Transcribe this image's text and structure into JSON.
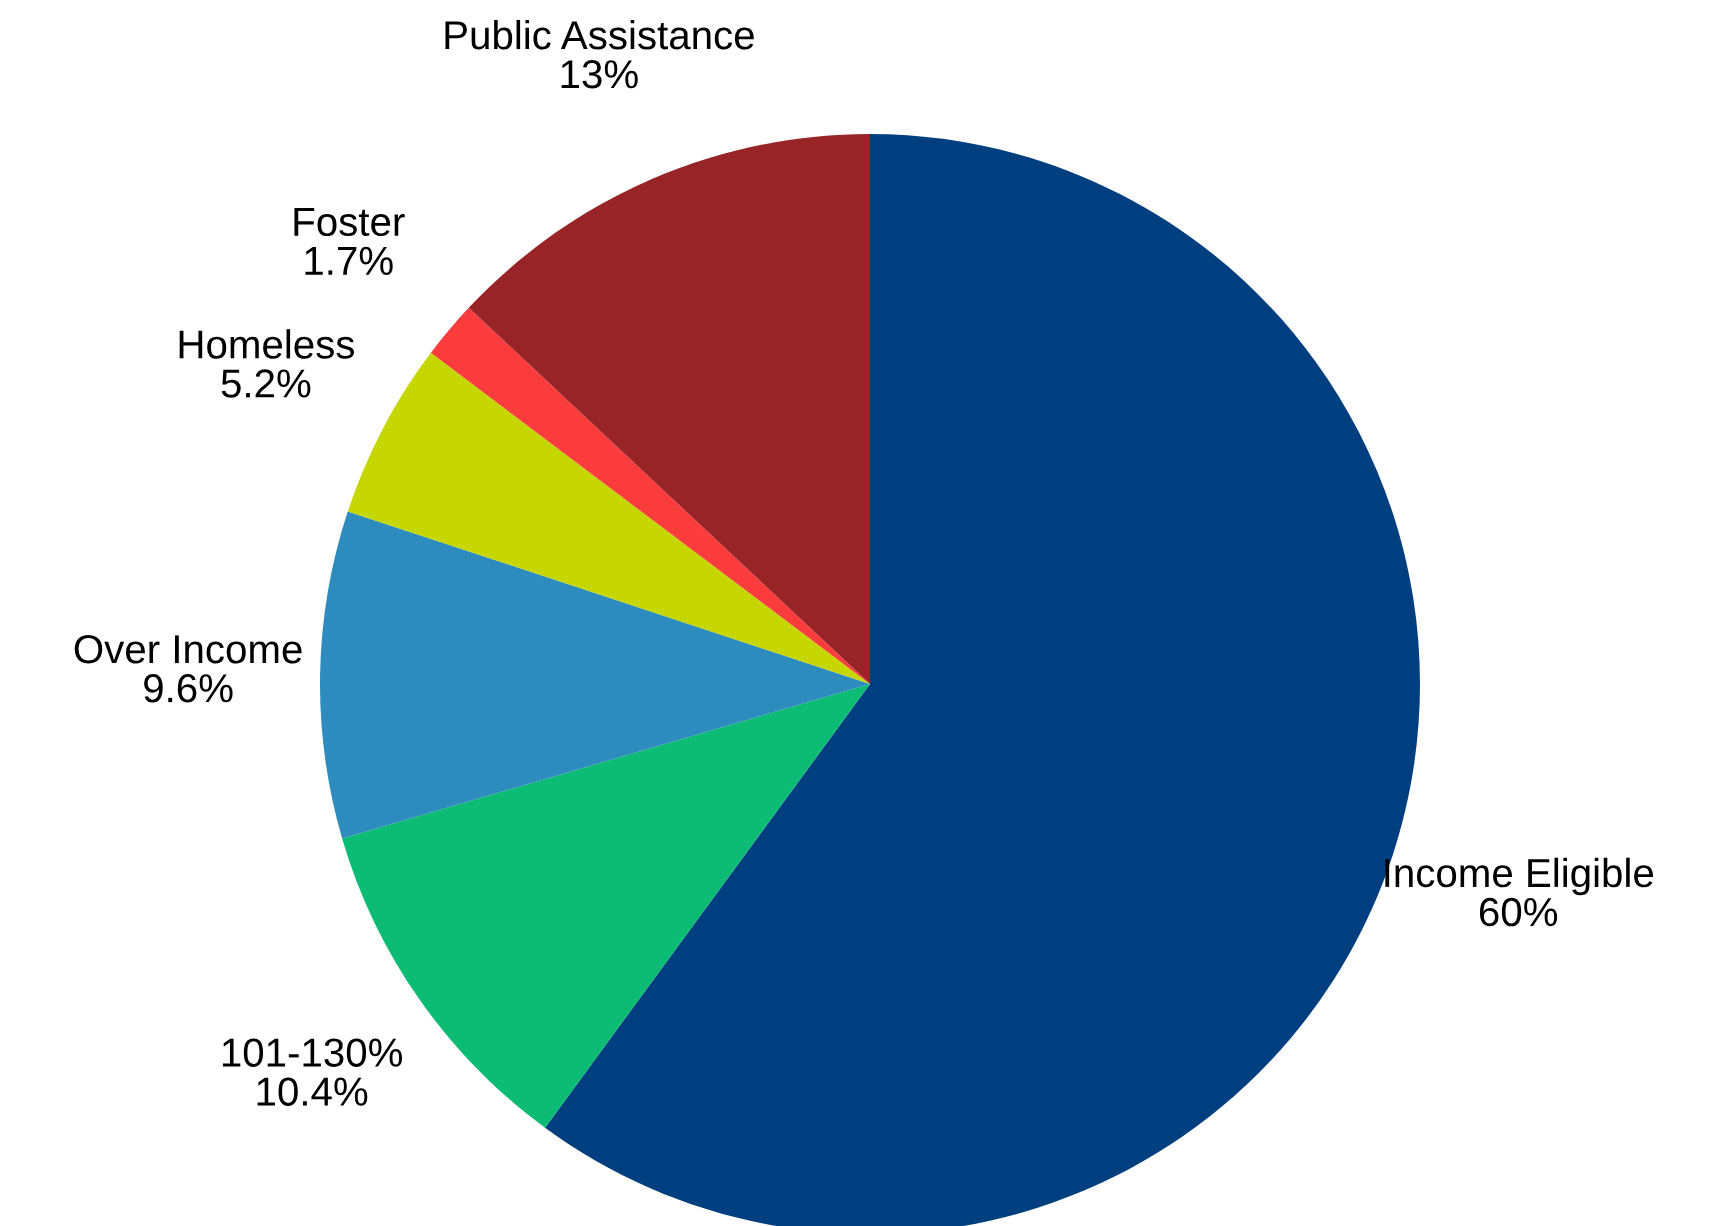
{
  "chart_data": {
    "type": "pie",
    "categories": [
      "Income Eligible",
      "101-130%",
      "Over Income",
      "Homeless",
      "Foster",
      "Public Assistance"
    ],
    "values": [
      60,
      10.4,
      9.6,
      5.2,
      1.7,
      13
    ],
    "value_labels": [
      "60%",
      "10.4%",
      "9.6%",
      "5.2%",
      "1.7%",
      "13%"
    ],
    "colors": [
      "#003f7f",
      "#0cbc74",
      "#2e8bbd",
      "#c5d600",
      "#fb3c3c",
      "#982427"
    ],
    "legend": false
  }
}
